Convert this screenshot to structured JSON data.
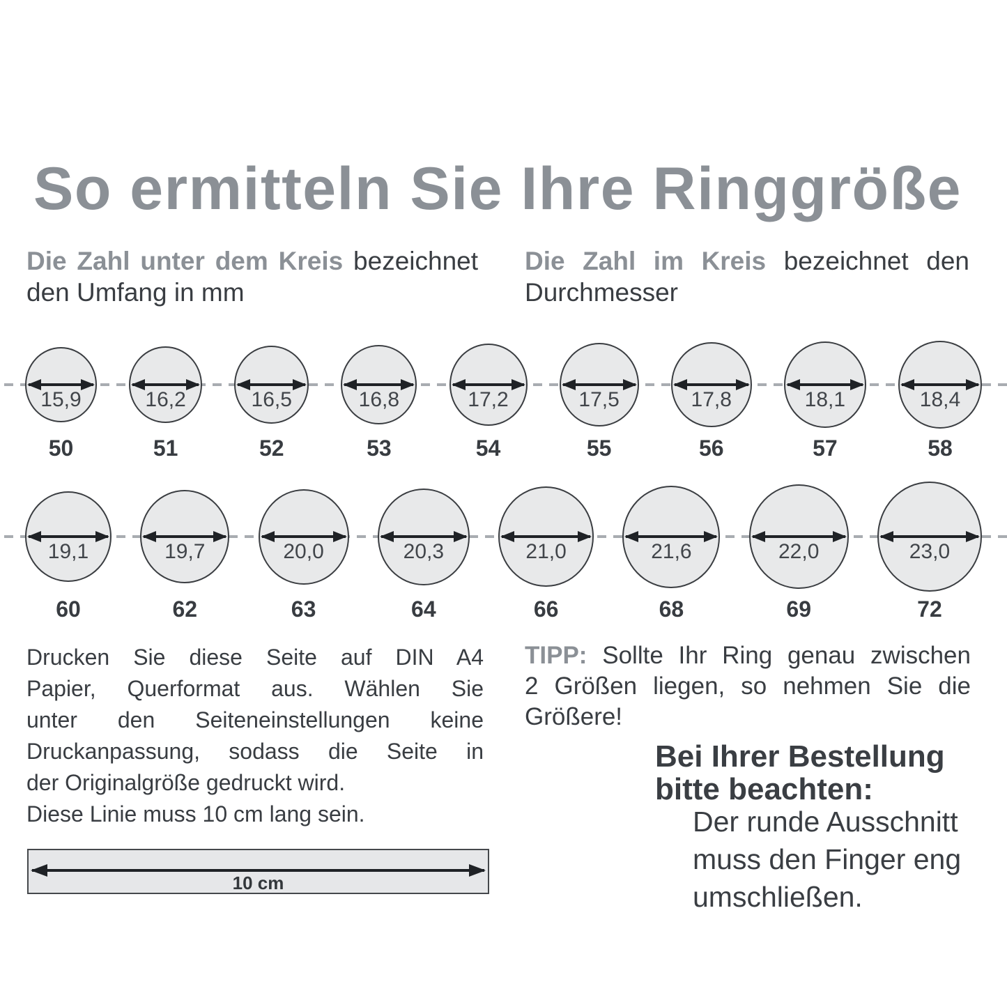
{
  "title": "So ermitteln Sie Ihre Ringgröße",
  "intro_left": {
    "lines": [
      {
        "hl": "Die Zahl unter dem Kreis",
        "text": " bezeichnet",
        "justify": true
      },
      {
        "text": "den Umfang in mm"
      }
    ]
  },
  "intro_right": {
    "lines": [
      {
        "hl": "Die Zahl im Kreis",
        "text": " bezeichnet den",
        "justify": true
      },
      {
        "text": "Durchmesser"
      }
    ]
  },
  "size_rows": [
    {
      "circles": [
        {
          "diameter_mm": "15,9",
          "size": "50"
        },
        {
          "diameter_mm": "16,2",
          "size": "51"
        },
        {
          "diameter_mm": "16,5",
          "size": "52"
        },
        {
          "diameter_mm": "16,8",
          "size": "53"
        },
        {
          "diameter_mm": "17,2",
          "size": "54"
        },
        {
          "diameter_mm": "17,5",
          "size": "55"
        },
        {
          "diameter_mm": "17,8",
          "size": "56"
        },
        {
          "diameter_mm": "18,1",
          "size": "57"
        },
        {
          "diameter_mm": "18,4",
          "size": "58"
        }
      ]
    },
    {
      "circles": [
        {
          "diameter_mm": "19,1",
          "size": "60"
        },
        {
          "diameter_mm": "19,7",
          "size": "62"
        },
        {
          "diameter_mm": "20,0",
          "size": "63"
        },
        {
          "diameter_mm": "20,3",
          "size": "64"
        },
        {
          "diameter_mm": "21,0",
          "size": "66"
        },
        {
          "diameter_mm": "21,6",
          "size": "68"
        },
        {
          "diameter_mm": "22,0",
          "size": "69"
        },
        {
          "diameter_mm": "23,0",
          "size": "72"
        }
      ]
    }
  ],
  "print_instructions": {
    "lines": [
      {
        "text": "Drucken Sie diese Seite auf DIN A4",
        "justify": true
      },
      {
        "text": "Papier, Querformat aus. Wählen Sie",
        "justify": true
      },
      {
        "text": "unter den Seiteneinstellungen keine",
        "justify": true
      },
      {
        "text": "Druckanpassung, sodass die Seite in",
        "justify": true
      },
      {
        "text": "der Originalgröße gedruckt wird."
      },
      {
        "text": "Diese Linie muss 10 cm lang sein."
      }
    ]
  },
  "tip": {
    "lines": [
      {
        "hl": "TIPP:",
        "text": " Sollte Ihr Ring genau zwischen",
        "justify": true
      },
      {
        "text": "2 Größen liegen, so nehmen Sie die",
        "justify": true
      },
      {
        "text": "Größere!"
      }
    ]
  },
  "order_note": {
    "heading": {
      "lines": [
        {
          "text": "Bei Ihrer Bestellung"
        },
        {
          "text": "bitte beachten:"
        }
      ]
    },
    "body": {
      "lines": [
        {
          "text": "Der runde Ausschnitt"
        },
        {
          "text": "muss den Finger eng"
        },
        {
          "text": "umschließen."
        }
      ]
    }
  },
  "ruler": {
    "label": "10 cm"
  },
  "colors": {
    "accent_gray": "#8b9096",
    "text_dark": "#393d42",
    "circle_fill": "#e8e9ea",
    "circle_stroke": "#3a3d41",
    "arrow": "#1f2226",
    "dashed_line": "#a8acb1"
  }
}
